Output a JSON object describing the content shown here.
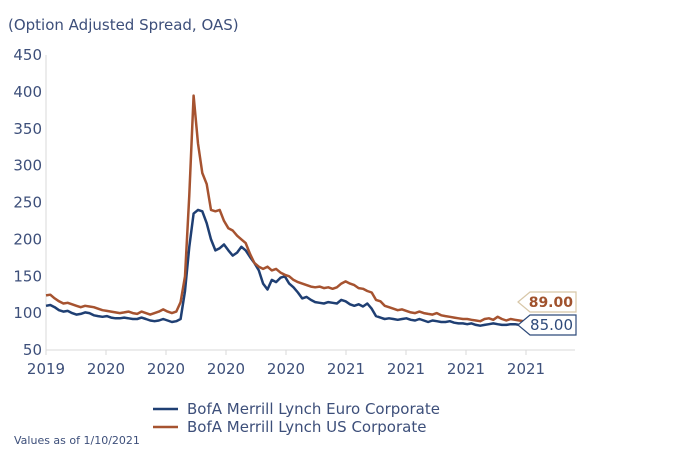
{
  "chart_data": {
    "type": "line",
    "title": "",
    "subtitle": "(Option Adjusted Spread, OAS)",
    "xlabel": "",
    "ylabel": "",
    "ylim": [
      50,
      450
    ],
    "yticks": [
      "450",
      "400",
      "350",
      "300",
      "250",
      "200",
      "150",
      "100",
      "50"
    ],
    "ytick_values": [
      450,
      400,
      350,
      300,
      250,
      200,
      150,
      100,
      50
    ],
    "xticks": [
      "2019",
      "2020",
      "2020",
      "2020",
      "2020",
      "2021",
      "2021",
      "2021",
      "2021"
    ],
    "grid": false,
    "legend_position": "bottom",
    "note": "Values as of 1/10/2021",
    "series": [
      {
        "name": "BofA Merrill Lynch Euro Corporate",
        "color": "#1f3f73",
        "end_label": "85.00",
        "values": [
          110,
          111,
          108,
          104,
          102,
          103,
          100,
          98,
          99,
          101,
          100,
          97,
          96,
          95,
          96,
          94,
          93,
          93,
          94,
          93,
          92,
          92,
          94,
          92,
          90,
          89,
          90,
          92,
          90,
          88,
          89,
          92,
          130,
          190,
          235,
          240,
          238,
          222,
          200,
          185,
          188,
          193,
          185,
          178,
          182,
          190,
          185,
          176,
          168,
          158,
          140,
          132,
          145,
          142,
          148,
          150,
          140,
          135,
          128,
          120,
          122,
          118,
          115,
          114,
          113,
          115,
          114,
          113,
          118,
          116,
          112,
          110,
          112,
          109,
          113,
          106,
          96,
          94,
          92,
          93,
          92,
          91,
          92,
          93,
          91,
          90,
          92,
          90,
          88,
          90,
          89,
          88,
          88,
          89,
          87,
          86,
          86,
          85,
          86,
          84,
          83,
          84,
          85,
          86,
          85,
          84,
          84,
          85,
          85,
          84,
          85,
          85
        ]
      },
      {
        "name": "BofA Merrill Lynch US Corporate",
        "color": "#a65330",
        "end_label": "89.00",
        "values": [
          124,
          125,
          120,
          116,
          113,
          114,
          112,
          110,
          108,
          110,
          109,
          108,
          106,
          104,
          103,
          102,
          101,
          100,
          101,
          102,
          100,
          99,
          102,
          100,
          98,
          100,
          102,
          105,
          102,
          100,
          102,
          115,
          150,
          260,
          395,
          330,
          290,
          275,
          240,
          238,
          240,
          225,
          215,
          212,
          205,
          200,
          195,
          180,
          168,
          163,
          160,
          163,
          158,
          160,
          155,
          152,
          150,
          145,
          142,
          140,
          138,
          136,
          135,
          136,
          134,
          135,
          133,
          135,
          140,
          143,
          140,
          138,
          134,
          133,
          130,
          128,
          118,
          116,
          110,
          108,
          106,
          104,
          105,
          103,
          101,
          100,
          102,
          100,
          99,
          98,
          100,
          97,
          96,
          95,
          94,
          93,
          92,
          92,
          91,
          90,
          89,
          92,
          93,
          91,
          95,
          92,
          90,
          92,
          91,
          90,
          89,
          89
        ]
      }
    ]
  }
}
